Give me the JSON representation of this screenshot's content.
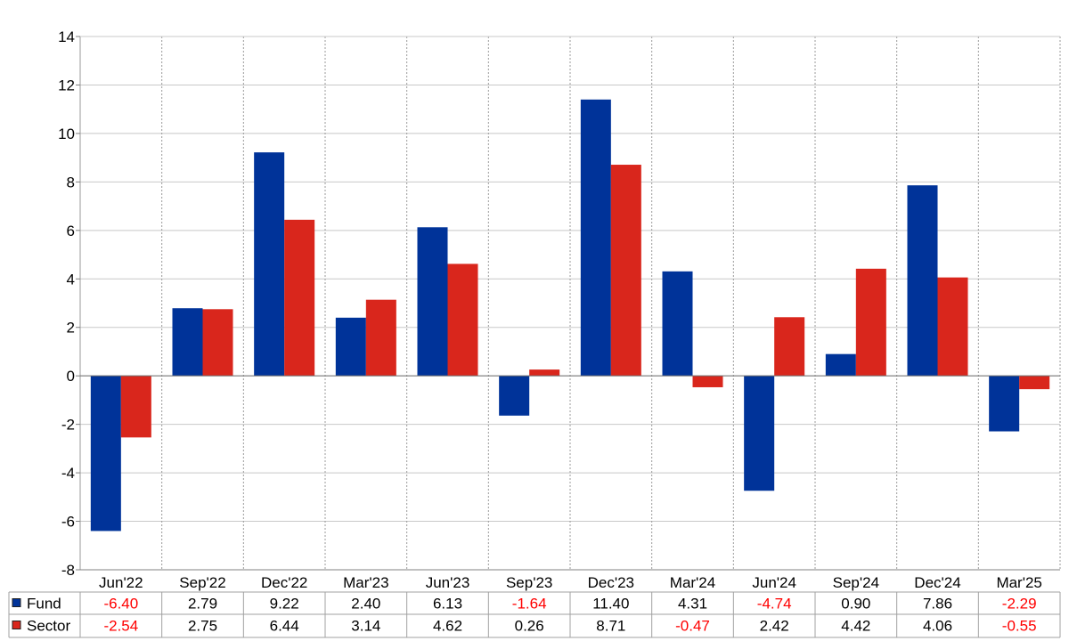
{
  "chart_data": {
    "type": "bar",
    "categories": [
      "Jun'22",
      "Sep'22",
      "Dec'22",
      "Mar'23",
      "Jun'23",
      "Sep'23",
      "Dec'23",
      "Mar'24",
      "Jun'24",
      "Sep'24",
      "Dec'24",
      "Mar'25"
    ],
    "series": [
      {
        "name": "Fund",
        "color": "#003399",
        "values": [
          -6.4,
          2.79,
          9.22,
          2.4,
          6.13,
          -1.64,
          11.4,
          4.31,
          -4.74,
          0.9,
          7.86,
          -2.29
        ],
        "labels": [
          "-6.40",
          "2.79",
          "9.22",
          "2.40",
          "6.13",
          "-1.64",
          "11.40",
          "4.31",
          "-4.74",
          "0.90",
          "7.86",
          "-2.29"
        ]
      },
      {
        "name": "Sector",
        "color": "#d9261c",
        "values": [
          -2.54,
          2.75,
          6.44,
          3.14,
          4.62,
          0.26,
          8.71,
          -0.47,
          2.42,
          4.42,
          4.06,
          -0.55
        ],
        "labels": [
          "-2.54",
          "2.75",
          "6.44",
          "3.14",
          "4.62",
          "0.26",
          "8.71",
          "-0.47",
          "2.42",
          "4.42",
          "4.06",
          "-0.55"
        ]
      }
    ],
    "ylim": [
      -8,
      14
    ],
    "yticks": [
      "14",
      "12",
      "10",
      "8",
      "6",
      "4",
      "2",
      "0",
      "-2",
      "-4",
      "-6",
      "-8"
    ],
    "ytick_values": [
      14,
      12,
      10,
      8,
      6,
      4,
      2,
      0,
      -2,
      -4,
      -6,
      -8
    ],
    "grid": true,
    "negative_value_color": "#ff0000",
    "positive_value_color": "#000000"
  }
}
